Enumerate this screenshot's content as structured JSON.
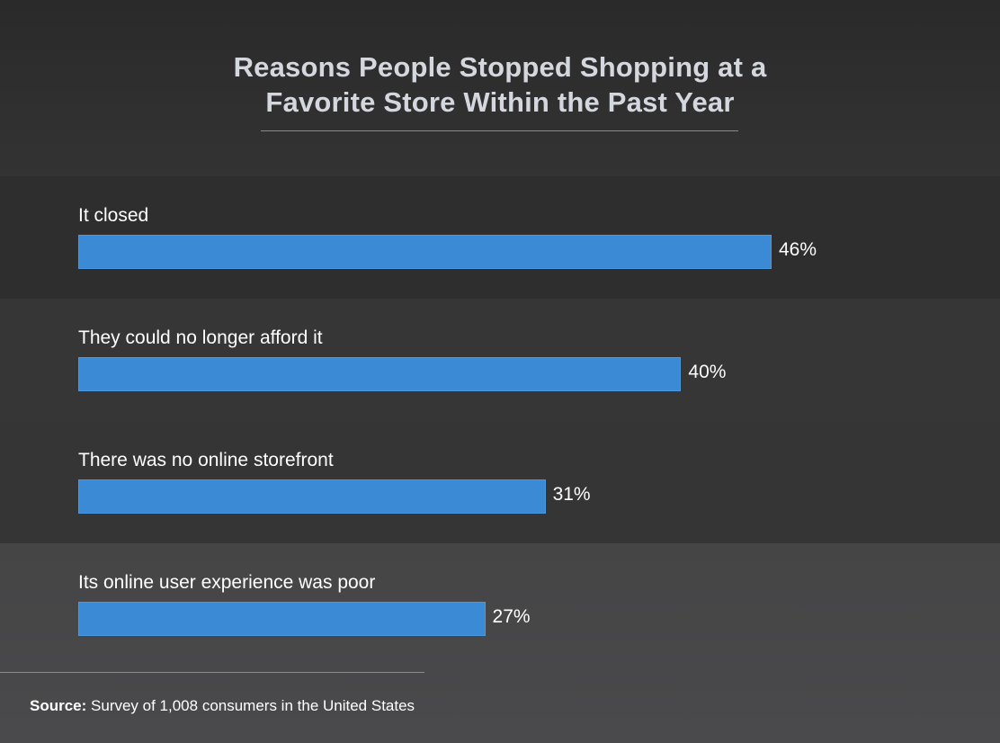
{
  "chart_data": {
    "type": "bar",
    "orientation": "horizontal",
    "title": "Reasons People Stopped Shopping at a Favorite Store Within the Past Year",
    "title_lines": [
      "Reasons People Stopped Shopping at a",
      "Favorite Store Within the Past Year"
    ],
    "categories": [
      "It closed",
      "They could no longer afford it",
      "There was no online storefront",
      "Its online user experience was poor"
    ],
    "values": [
      46,
      40,
      31,
      27
    ],
    "value_labels": [
      "46%",
      "40%",
      "31%",
      "27%"
    ],
    "unit": "%",
    "bar_color": "#3a8ad6",
    "grid": false,
    "legend": "none"
  },
  "source": {
    "label": "Source:",
    "text": " Survey of 1,008 consumers in the United States"
  }
}
